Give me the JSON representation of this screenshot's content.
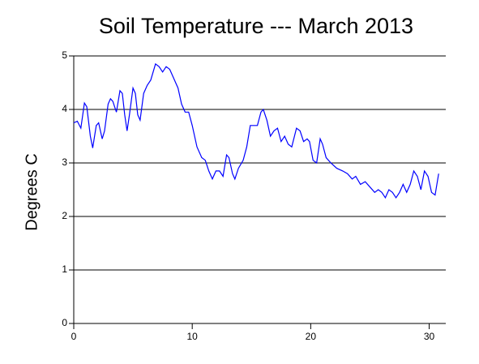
{
  "chart_data": {
    "type": "line",
    "title": "Soil Temperature --- March 2013",
    "y_label": "Degrees C",
    "xlim": [
      0,
      31.4
    ],
    "xticks": [
      0,
      10,
      20,
      30
    ],
    "ylim": [
      0,
      5
    ],
    "yticks": [
      0,
      1,
      2,
      3,
      4,
      5
    ],
    "grid": true,
    "x": [
      0,
      0.3,
      0.6,
      0.9,
      1.1,
      1.4,
      1.6,
      1.9,
      2.1,
      2.4,
      2.6,
      2.9,
      3.1,
      3.3,
      3.6,
      3.9,
      4.1,
      4.3,
      4.5,
      4.7,
      5.0,
      5.2,
      5.4,
      5.6,
      5.9,
      6.2,
      6.5,
      6.9,
      7.2,
      7.5,
      7.8,
      8.1,
      8.4,
      8.8,
      9.1,
      9.4,
      9.7,
      10.0,
      10.4,
      10.8,
      11.1,
      11.4,
      11.7,
      12.0,
      12.3,
      12.6,
      12.9,
      13.1,
      13.4,
      13.6,
      13.9,
      14.3,
      14.6,
      14.9,
      15.2,
      15.5,
      15.8,
      16.0,
      16.3,
      16.6,
      16.9,
      17.2,
      17.5,
      17.8,
      18.1,
      18.4,
      18.8,
      19.1,
      19.4,
      19.7,
      19.9,
      20.2,
      20.5,
      20.8,
      21.0,
      21.3,
      21.7,
      22.2,
      22.7,
      23.1,
      23.5,
      23.8,
      24.2,
      24.6,
      25.0,
      25.4,
      25.7,
      26.0,
      26.3,
      26.6,
      26.9,
      27.2,
      27.5,
      27.8,
      28.1,
      28.4,
      28.7,
      29.0,
      29.3,
      29.6,
      29.9,
      30.2,
      30.5,
      30.8
    ],
    "series": [
      {
        "name": "Soil Temperature",
        "color": "#0000ff",
        "values": [
          3.75,
          3.78,
          3.65,
          4.12,
          4.05,
          3.5,
          3.28,
          3.7,
          3.75,
          3.45,
          3.6,
          4.1,
          4.2,
          4.15,
          3.95,
          4.35,
          4.3,
          3.9,
          3.6,
          3.9,
          4.4,
          4.3,
          3.9,
          3.8,
          4.3,
          4.45,
          4.55,
          4.85,
          4.8,
          4.7,
          4.8,
          4.75,
          4.6,
          4.4,
          4.1,
          3.95,
          3.95,
          3.7,
          3.3,
          3.1,
          3.05,
          2.85,
          2.7,
          2.85,
          2.85,
          2.75,
          3.15,
          3.1,
          2.8,
          2.7,
          2.9,
          3.05,
          3.3,
          3.7,
          3.7,
          3.7,
          3.95,
          4.0,
          3.8,
          3.5,
          3.6,
          3.65,
          3.4,
          3.5,
          3.35,
          3.3,
          3.65,
          3.6,
          3.4,
          3.45,
          3.4,
          3.05,
          3.0,
          3.45,
          3.35,
          3.1,
          3.0,
          2.9,
          2.85,
          2.8,
          2.7,
          2.75,
          2.6,
          2.65,
          2.55,
          2.45,
          2.5,
          2.45,
          2.35,
          2.5,
          2.45,
          2.35,
          2.45,
          2.6,
          2.45,
          2.6,
          2.85,
          2.75,
          2.5,
          2.85,
          2.75,
          2.45,
          2.4,
          2.8
        ]
      }
    ]
  }
}
